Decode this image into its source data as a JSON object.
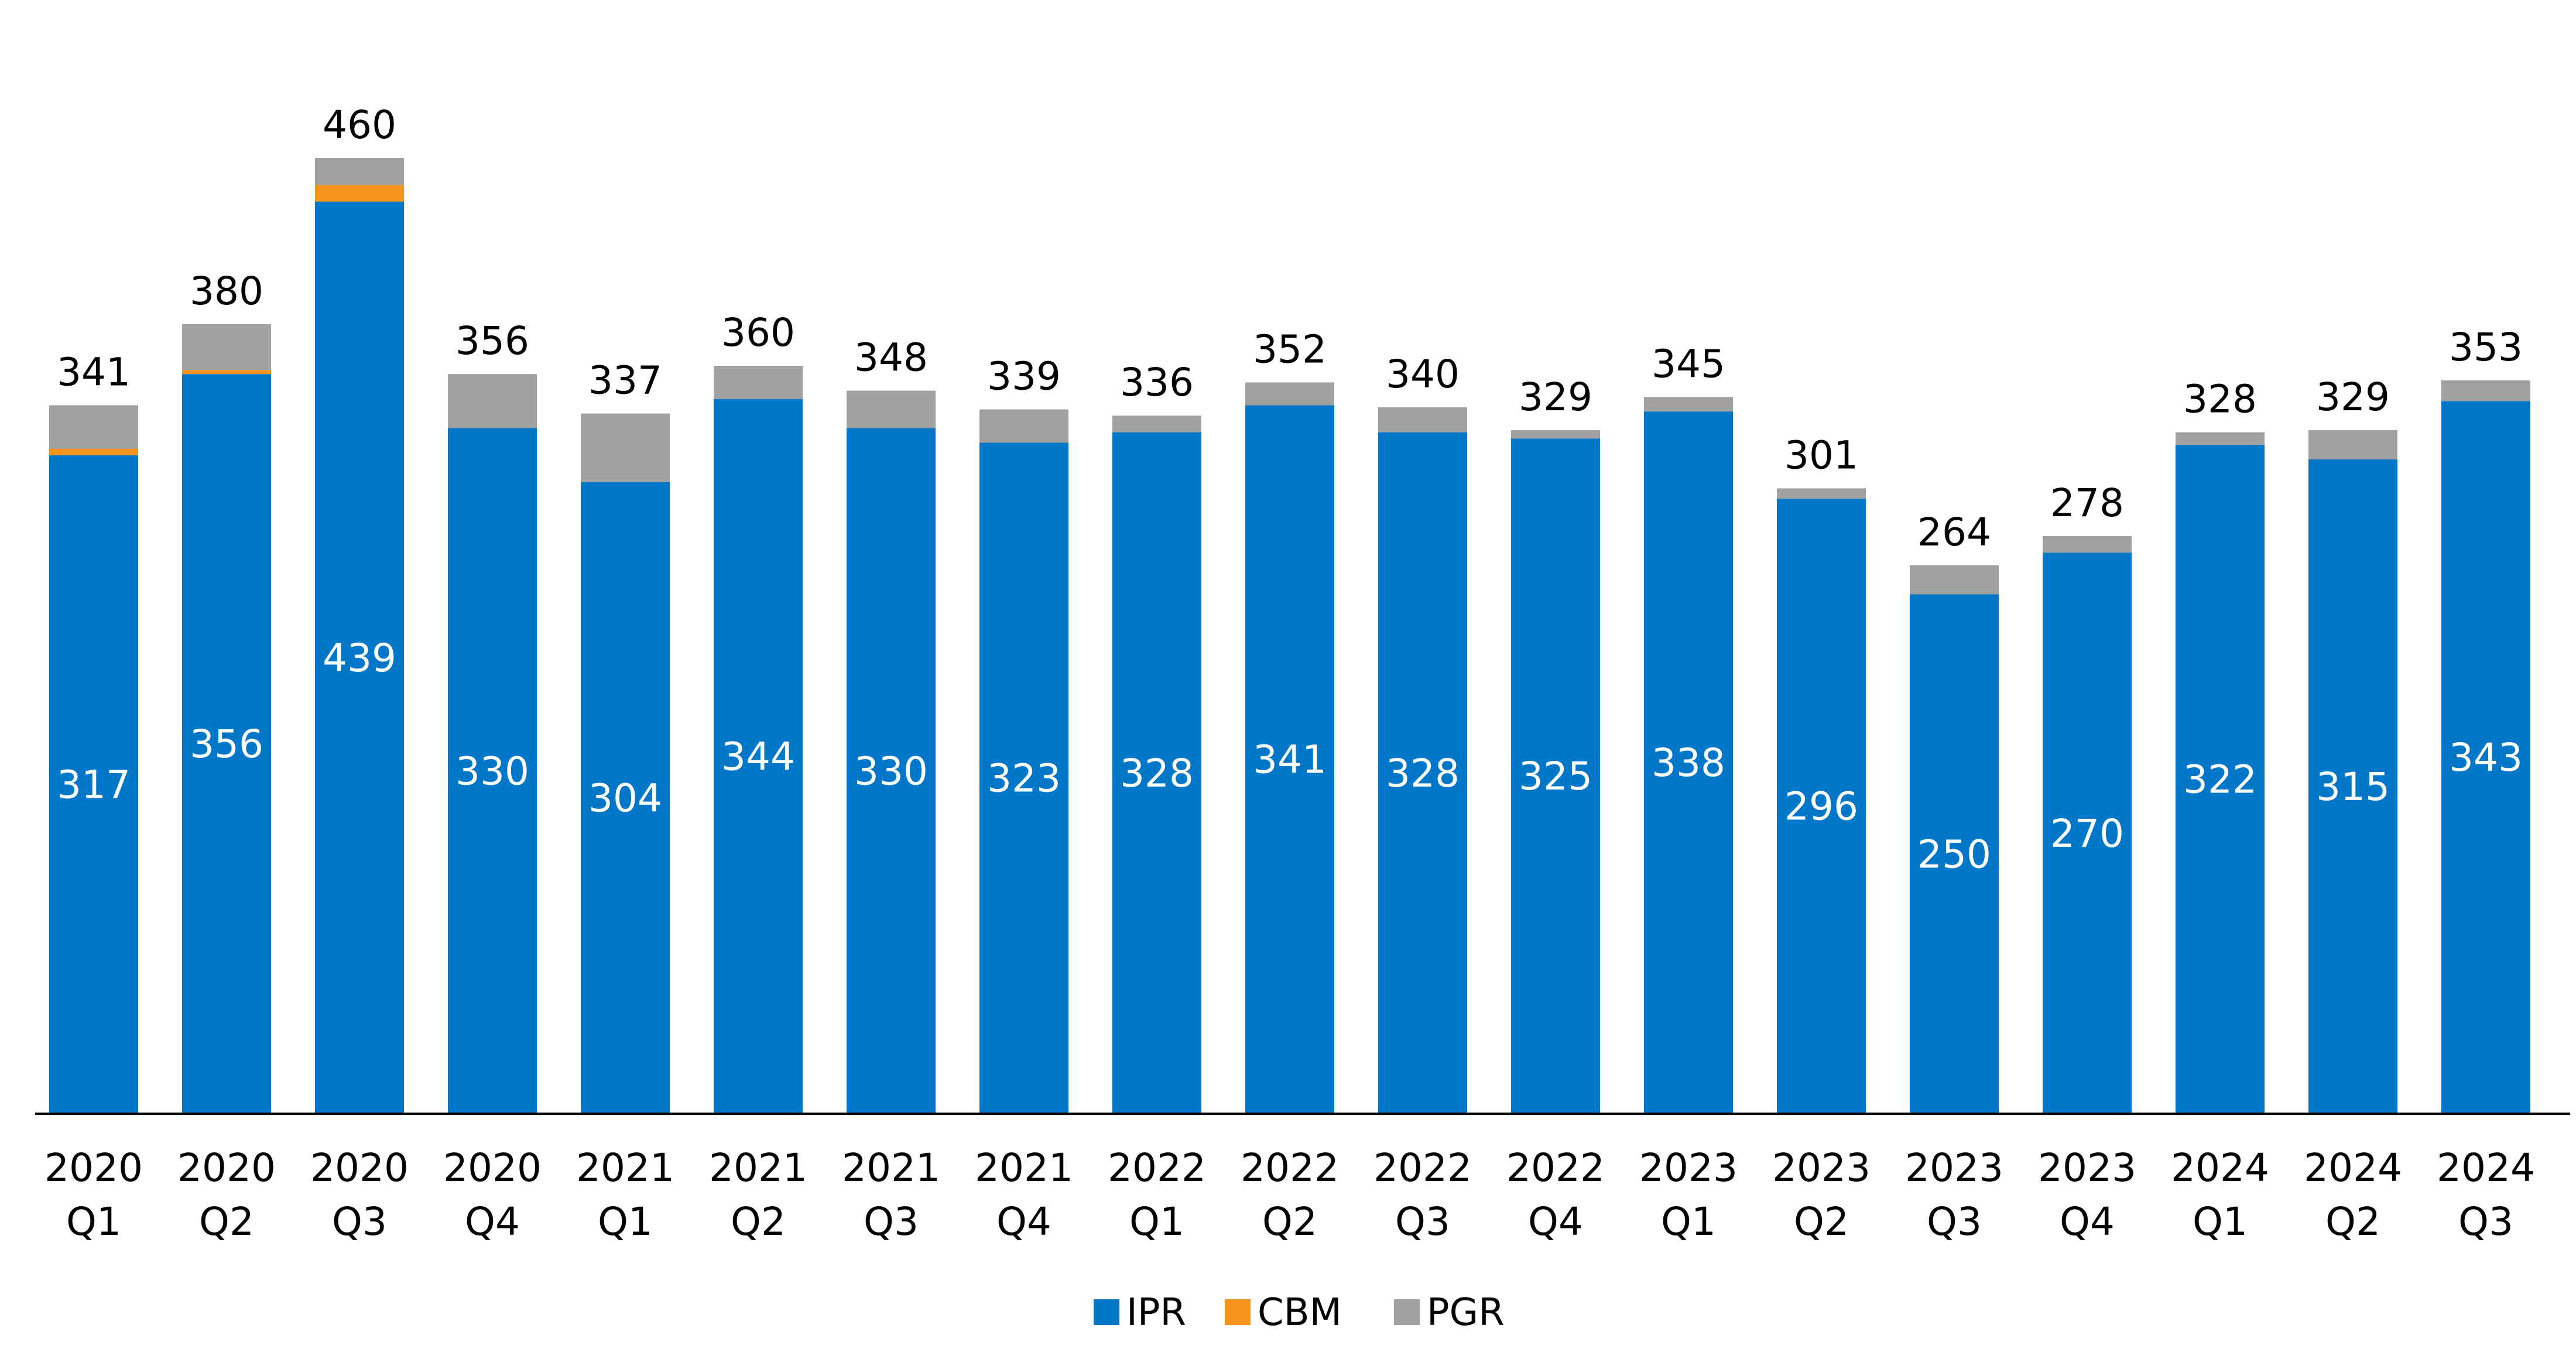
{
  "chart_data": {
    "type": "bar",
    "stacked": true,
    "categories": [
      [
        "2020",
        "Q1"
      ],
      [
        "2020",
        "Q2"
      ],
      [
        "2020",
        "Q3"
      ],
      [
        "2020",
        "Q4"
      ],
      [
        "2021",
        "Q1"
      ],
      [
        "2021",
        "Q2"
      ],
      [
        "2021",
        "Q3"
      ],
      [
        "2021",
        "Q4"
      ],
      [
        "2022",
        "Q1"
      ],
      [
        "2022",
        "Q2"
      ],
      [
        "2022",
        "Q3"
      ],
      [
        "2022",
        "Q4"
      ],
      [
        "2023",
        "Q1"
      ],
      [
        "2023",
        "Q2"
      ],
      [
        "2023",
        "Q3"
      ],
      [
        "2023",
        "Q4"
      ],
      [
        "2024",
        "Q1"
      ],
      [
        "2024",
        "Q2"
      ],
      [
        "2024",
        "Q3"
      ]
    ],
    "series": [
      {
        "name": "IPR",
        "color": "#0077C8",
        "values": [
          317,
          356,
          439,
          330,
          304,
          344,
          330,
          323,
          328,
          341,
          328,
          325,
          338,
          296,
          250,
          270,
          322,
          315,
          343
        ]
      },
      {
        "name": "CBM",
        "color": "#F7941D",
        "values": [
          3,
          2,
          8,
          0,
          0,
          0,
          0,
          0,
          0,
          0,
          0,
          0,
          0,
          0,
          0,
          0,
          0,
          0,
          0
        ]
      },
      {
        "name": "PGR",
        "color": "#A0A0A0",
        "values": [
          21,
          22,
          13,
          26,
          33,
          16,
          18,
          16,
          8,
          11,
          12,
          4,
          7,
          5,
          14,
          8,
          6,
          14,
          10
        ]
      }
    ],
    "totals": [
      341,
      380,
      460,
      356,
      337,
      360,
      348,
      339,
      336,
      352,
      340,
      329,
      345,
      301,
      264,
      278,
      328,
      329,
      353
    ],
    "title": "",
    "xlabel": "",
    "ylabel": "",
    "ylim": [
      0,
      480
    ],
    "grid": false,
    "legend": "bottom-center"
  }
}
